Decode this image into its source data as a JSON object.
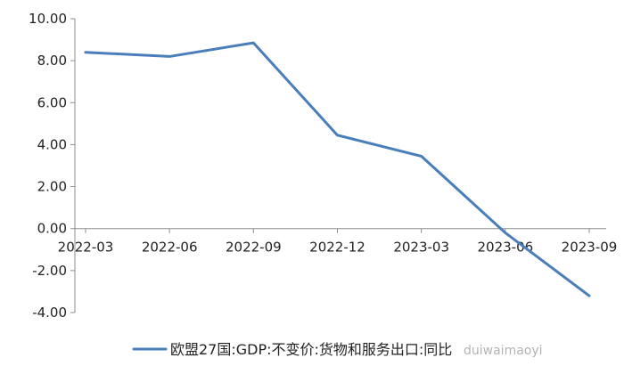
{
  "chart_data": {
    "type": "line",
    "title": "",
    "xlabel": "",
    "ylabel": "",
    "categories": [
      "2022-03",
      "2022-06",
      "2022-09",
      "2022-12",
      "2023-03",
      "2023-06",
      "2023-09"
    ],
    "series": [
      {
        "name": "欧盟27国:GDP:不变价:货物和服务出口:同比",
        "values": [
          8.4,
          8.2,
          8.85,
          4.45,
          3.45,
          -0.2,
          -3.2
        ],
        "color": "#4a7ebb"
      }
    ],
    "yticks": [
      "10.00",
      "8.00",
      "6.00",
      "4.00",
      "2.00",
      "0.00",
      "-2.00",
      "-4.00"
    ],
    "ylim": [
      -4,
      10
    ],
    "grid": false,
    "legend_position": "bottom",
    "watermark": "duiwaimaoyi"
  }
}
